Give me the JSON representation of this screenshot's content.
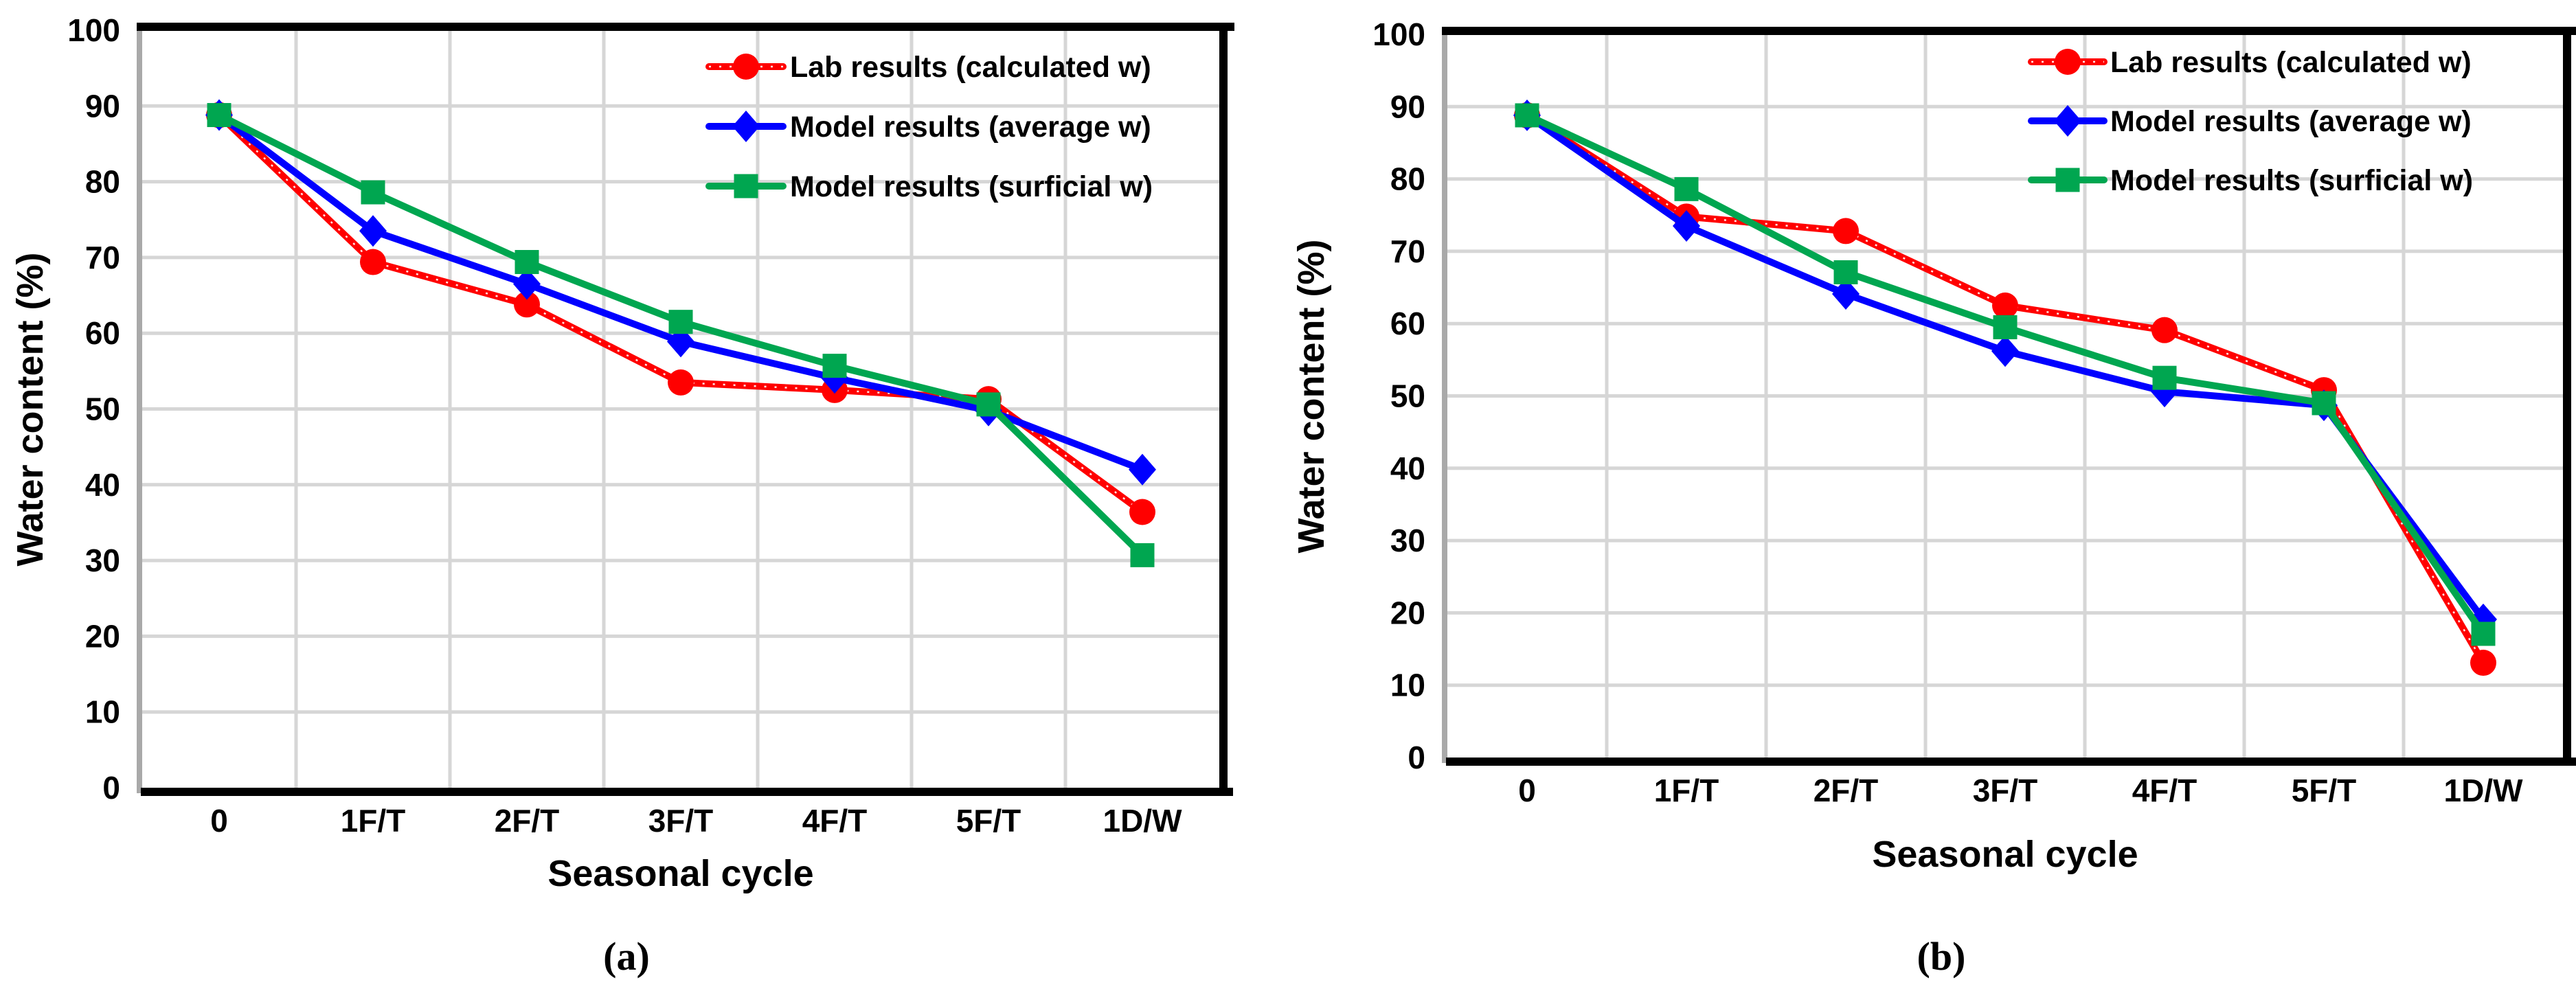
{
  "figure": {
    "description": "Two-panel line chart comparing lab and model water content over seasonal cycles"
  },
  "chart_data": [
    {
      "type": "line",
      "caption": "(a)",
      "xlabel": "Seasonal cycle",
      "ylabel": "Water content (%)",
      "categories": [
        "0",
        "1F/T",
        "2F/T",
        "3F/T",
        "4F/T",
        "5F/T",
        "1D/W"
      ],
      "ylim": [
        0,
        100
      ],
      "yticks": [
        0,
        10,
        20,
        30,
        40,
        50,
        60,
        70,
        80,
        90,
        100
      ],
      "grid": true,
      "legend_position": "top-right-inside",
      "series": [
        {
          "name": "Lab results (calculated w)",
          "color": "#ff0000",
          "marker": "circle",
          "values": [
            88.8,
            69.4,
            63.8,
            53.5,
            52.5,
            51.3,
            36.4
          ]
        },
        {
          "name": "Model results (average w)",
          "color": "#0000ff",
          "marker": "diamond",
          "values": [
            88.8,
            73.5,
            66.5,
            58.9,
            54.1,
            49.8,
            42.0
          ]
        },
        {
          "name": "Model results (surficial w)",
          "color": "#00a650",
          "marker": "square",
          "values": [
            88.8,
            78.6,
            69.4,
            61.5,
            55.7,
            50.6,
            30.7
          ]
        }
      ]
    },
    {
      "type": "line",
      "caption": "(b)",
      "xlabel": "Seasonal cycle",
      "ylabel": "Water content (%)",
      "categories": [
        "0",
        "1F/T",
        "2F/T",
        "3F/T",
        "4F/T",
        "5F/T",
        "1D/W"
      ],
      "ylim": [
        0,
        100
      ],
      "yticks": [
        0,
        10,
        20,
        30,
        40,
        50,
        60,
        70,
        80,
        90,
        100
      ],
      "grid": true,
      "legend_position": "top-right-inside",
      "series": [
        {
          "name": "Lab results (calculated w)",
          "color": "#ff0000",
          "marker": "circle",
          "values": [
            88.8,
            74.8,
            72.8,
            62.5,
            59.1,
            50.8,
            13.1
          ]
        },
        {
          "name": "Model results (average w)",
          "color": "#0000ff",
          "marker": "diamond",
          "values": [
            88.8,
            73.5,
            64.1,
            56.2,
            50.6,
            48.7,
            19.1
          ]
        },
        {
          "name": "Model results (surficial w)",
          "color": "#00a650",
          "marker": "square",
          "values": [
            88.8,
            78.6,
            67.1,
            59.5,
            52.5,
            49.0,
            17.1
          ]
        }
      ]
    }
  ],
  "style": {
    "grid_color": "#d6d6d6",
    "border_color": "#000000",
    "left_axis_color": "#a9a9a9",
    "background": "#ffffff"
  }
}
